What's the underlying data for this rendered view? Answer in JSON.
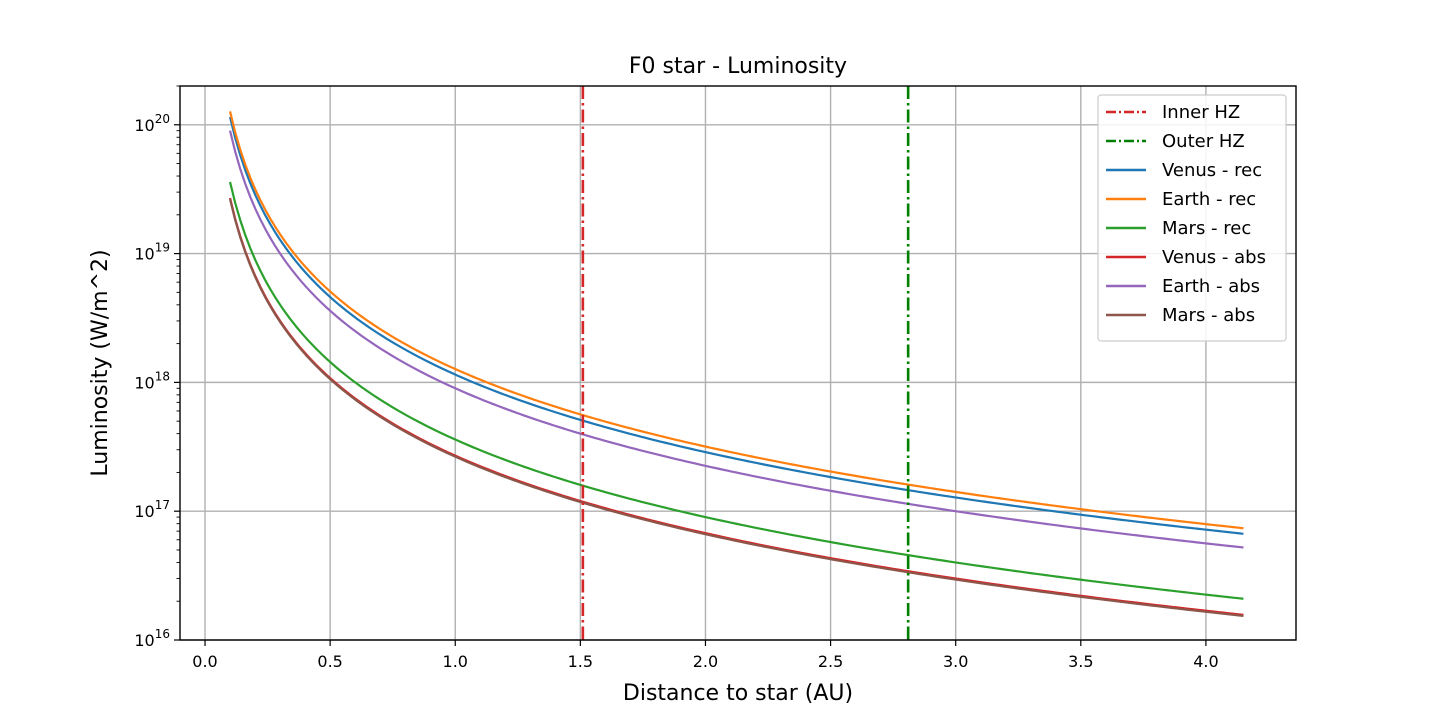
{
  "chart_data": {
    "type": "line",
    "title": "F0 star - Luminosity",
    "xlabel": "Distance to star (AU)",
    "ylabel": "Luminosity (W/m^2)",
    "xlim": [
      -0.1,
      4.36
    ],
    "ylim": [
      1e+16,
      2e+20
    ],
    "yscale": "log",
    "grid": true,
    "legend_position": "top-right",
    "xticks": [
      0.0,
      0.5,
      1.0,
      1.5,
      2.0,
      2.5,
      3.0,
      3.5,
      4.0
    ],
    "xtick_labels": [
      "0.0",
      "0.5",
      "1.0",
      "1.5",
      "2.0",
      "2.5",
      "3.0",
      "3.5",
      "4.0"
    ],
    "yticks": [
      {
        "value": 1e+16,
        "base": "10",
        "exp": "16"
      },
      {
        "value": 1e+17,
        "base": "10",
        "exp": "17"
      },
      {
        "value": 1e+18,
        "base": "10",
        "exp": "18"
      },
      {
        "value": 1e+19,
        "base": "10",
        "exp": "19"
      },
      {
        "value": 1e+20,
        "base": "10",
        "exp": "20"
      }
    ],
    "vlines": [
      {
        "name": "Inner HZ",
        "x": 1.51,
        "color": "#d62728",
        "style": "dashdot"
      },
      {
        "name": "Outer HZ",
        "x": 2.81,
        "color": "#007f00",
        "style": "dashdot"
      }
    ],
    "series": [
      {
        "name": "Venus - rec",
        "color": "#1f77b4",
        "coefficient": 1.15e+18,
        "x_range": [
          0.1,
          4.15
        ]
      },
      {
        "name": "Earth - rec",
        "color": "#ff7f0e",
        "coefficient": 1.27e+18,
        "x_range": [
          0.1,
          4.15
        ]
      },
      {
        "name": "Mars - rec",
        "color": "#2ca02c",
        "coefficient": 3.6e+17,
        "x_range": [
          0.1,
          4.15
        ]
      },
      {
        "name": "Venus - abs",
        "color": "#d62728",
        "coefficient": 2.7e+17,
        "x_range": [
          0.1,
          4.15
        ]
      },
      {
        "name": "Earth - abs",
        "color": "#9467bd",
        "coefficient": 9e+17,
        "x_range": [
          0.1,
          4.15
        ]
      },
      {
        "name": "Mars - abs",
        "color": "#8c564b",
        "coefficient": 2.65e+17,
        "x_range": [
          0.1,
          4.15
        ]
      }
    ],
    "series_model": "y = coefficient / x^2"
  }
}
